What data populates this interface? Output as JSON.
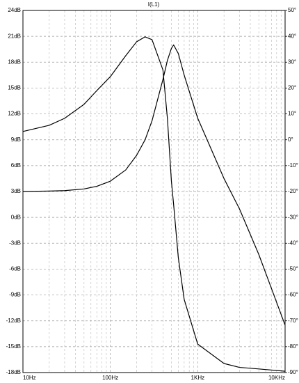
{
  "chart_data": {
    "type": "line",
    "title": "I(L1)",
    "x": [
      10,
      20,
      30,
      50,
      70,
      100,
      150,
      200,
      250,
      300,
      400,
      450,
      500,
      530,
      600,
      700,
      1000,
      2000,
      3000,
      5000,
      10000
    ],
    "series": [
      {
        "color": "#000000",
        "values": [
          3.0,
          3.05,
          3.1,
          3.3,
          3.6,
          4.2,
          5.5,
          7.2,
          9.0,
          11.2,
          16.0,
          18.2,
          19.6,
          20.0,
          19.0,
          16.5,
          11.5,
          4.5,
          1.0,
          -4.3,
          -12.5
        ]
      },
      {
        "color": "#000000",
        "axis": "y2",
        "values": [
          3.2,
          5.6,
          8.3,
          13.7,
          19,
          24.4,
          32.5,
          37.9,
          39.8,
          38.7,
          27,
          8.3,
          -16,
          -25,
          -45.6,
          -61.7,
          -79,
          -86.5,
          -88,
          -88.6,
          -89.5
        ]
      }
    ],
    "xscale": "log",
    "xlim": [
      10,
      10000
    ],
    "xticks": [
      {
        "value": 10,
        "label": "10Hz"
      },
      {
        "value": 100,
        "label": "100Hz"
      },
      {
        "value": 1000,
        "label": "1KHz"
      },
      {
        "value": 10000,
        "label": "10KHz"
      }
    ],
    "ylim": [
      -18,
      24
    ],
    "yticks": [
      {
        "value": -18,
        "label": "-18dB"
      },
      {
        "value": -15,
        "label": "-15dB"
      },
      {
        "value": -12,
        "label": "-12dB"
      },
      {
        "value": -9,
        "label": "-9dB"
      },
      {
        "value": -6,
        "label": "-6dB"
      },
      {
        "value": -3,
        "label": "-3dB"
      },
      {
        "value": 0,
        "label": "0dB"
      },
      {
        "value": 3,
        "label": "3dB"
      },
      {
        "value": 6,
        "label": "6dB"
      },
      {
        "value": 9,
        "label": "9dB"
      },
      {
        "value": 12,
        "label": "12dB"
      },
      {
        "value": 15,
        "label": "15dB"
      },
      {
        "value": 18,
        "label": "18dB"
      },
      {
        "value": 21,
        "label": "21dB"
      },
      {
        "value": 24,
        "label": "24dB"
      }
    ],
    "y2lim": [
      -90,
      50
    ],
    "y2ticks": [
      {
        "value": -90,
        "label": "-90°"
      },
      {
        "value": -80,
        "label": "-80°"
      },
      {
        "value": -70,
        "label": "-70°"
      },
      {
        "value": -60,
        "label": "-60°"
      },
      {
        "value": -50,
        "label": "-50°"
      },
      {
        "value": -40,
        "label": "-40°"
      },
      {
        "value": -30,
        "label": "-30°"
      },
      {
        "value": -20,
        "label": "-20°"
      },
      {
        "value": -10,
        "label": "-10°"
      },
      {
        "value": 0,
        "label": "0°"
      },
      {
        "value": 10,
        "label": "10°"
      },
      {
        "value": 20,
        "label": "20°"
      },
      {
        "value": 30,
        "label": "30°"
      },
      {
        "value": 40,
        "label": "40°"
      },
      {
        "value": 50,
        "label": "50°"
      }
    ],
    "grid": true
  }
}
